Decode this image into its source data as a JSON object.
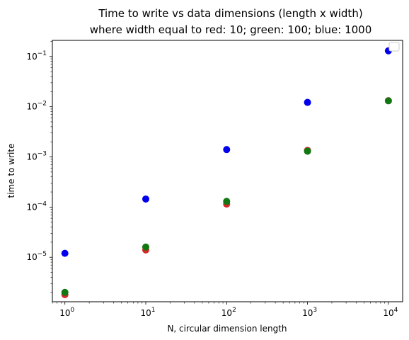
{
  "chart_data": {
    "type": "scatter",
    "title_line1": "Time to write vs data dimensions (length x width)",
    "title_line2": "where width equal to red: 10; green: 100; blue: 1000",
    "xlabel": "N, circular dimension length",
    "ylabel": "time to write",
    "xscale": "log",
    "yscale": "log",
    "xlim": [
      0.7,
      15000
    ],
    "ylim": [
      1.3e-06,
      0.21
    ],
    "grid": false,
    "legend": "top-right (empty)",
    "x_tick_labels": [
      {
        "base": "10",
        "exp": "0"
      },
      {
        "base": "10",
        "exp": "1"
      },
      {
        "base": "10",
        "exp": "2"
      },
      {
        "base": "10",
        "exp": "3"
      },
      {
        "base": "10",
        "exp": "4"
      }
    ],
    "y_tick_labels": [
      {
        "base": "10",
        "exp": "−5"
      },
      {
        "base": "10",
        "exp": "−4"
      },
      {
        "base": "10",
        "exp": "−3"
      },
      {
        "base": "10",
        "exp": "−2"
      },
      {
        "base": "10",
        "exp": "−1"
      }
    ],
    "x_tick_values": [
      1,
      10,
      100,
      1000,
      10000
    ],
    "y_tick_values": [
      1e-05,
      0.0001,
      0.001,
      0.01,
      0.1
    ],
    "x": [
      1,
      10,
      100,
      1000,
      10000
    ],
    "series": [
      {
        "color": "#d62728",
        "values": [
          1.8e-06,
          1.4e-05,
          0.000115,
          0.00135,
          0.0132
        ]
      },
      {
        "color": "#0000ee",
        "values": [
          1.2e-05,
          0.000145,
          0.0014,
          0.0122,
          0.13
        ]
      },
      {
        "color": "#117711",
        "values": [
          2e-06,
          1.6e-05,
          0.00013,
          0.0013,
          0.0131
        ]
      }
    ]
  }
}
